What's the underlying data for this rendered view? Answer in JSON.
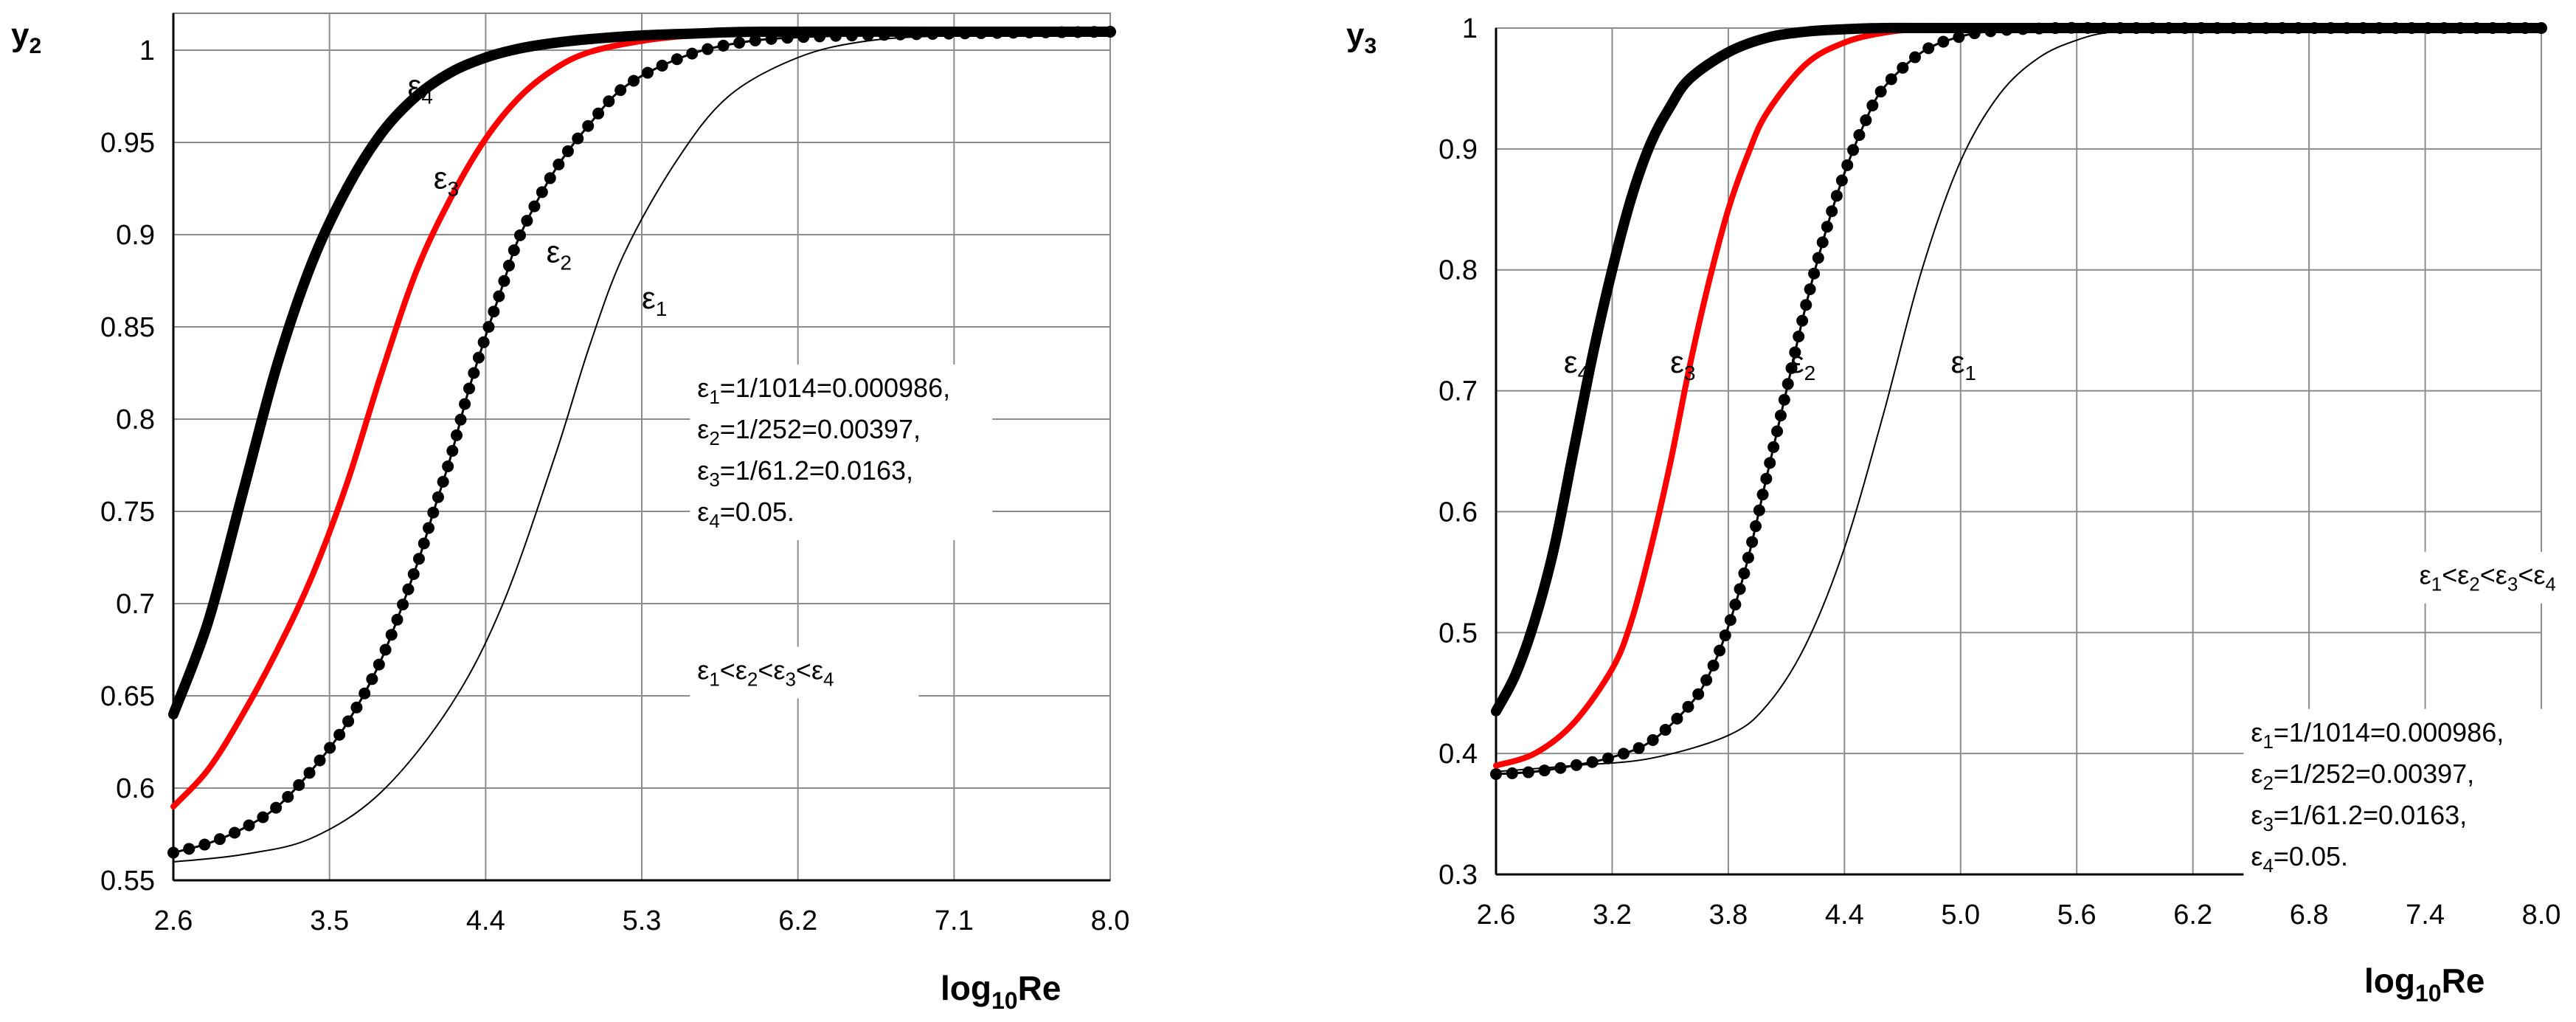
{
  "chart_data": [
    {
      "type": "line",
      "ylabel": "y",
      "ylabel_sub": "2",
      "xlabel": "log",
      "xlabel_sub": "10",
      "xlabel_tail": "Re",
      "xlim": [
        2.6,
        8.0
      ],
      "ylim": [
        0.55,
        1.02
      ],
      "xticks": [
        "2.6",
        "3.5",
        "4.4",
        "5.3",
        "6.2",
        "7.1",
        "8.0"
      ],
      "yticks": [
        "0.55",
        "0.6",
        "0.65",
        "0.7",
        "0.75",
        "0.8",
        "0.85",
        "0.9",
        "0.95",
        "1"
      ],
      "grid": true,
      "series": [
        {
          "name": "ε1",
          "style": "thin",
          "color": "#000000",
          "x": [
            2.6,
            3.0,
            3.4,
            3.8,
            4.2,
            4.5,
            4.8,
            5.0,
            5.2,
            5.5,
            5.8,
            6.2,
            6.6,
            7.1,
            8.0
          ],
          "y": [
            0.56,
            0.564,
            0.573,
            0.598,
            0.645,
            0.7,
            0.78,
            0.84,
            0.89,
            0.94,
            0.975,
            0.996,
            1.005,
            1.008,
            1.01
          ]
        },
        {
          "name": "ε2",
          "style": "dotted",
          "color": "#000000",
          "x": [
            2.6,
            2.8,
            3.0,
            3.2,
            3.4,
            3.6,
            3.8,
            4.0,
            4.1,
            4.2,
            4.3,
            4.4,
            4.5,
            4.6,
            4.8,
            5.0,
            5.2,
            5.5,
            5.8,
            6.2,
            7.1,
            8.0
          ],
          "y": [
            0.565,
            0.57,
            0.578,
            0.59,
            0.61,
            0.635,
            0.67,
            0.72,
            0.75,
            0.78,
            0.815,
            0.845,
            0.873,
            0.9,
            0.935,
            0.96,
            0.98,
            0.995,
            1.003,
            1.007,
            1.009,
            1.01
          ]
        },
        {
          "name": "ε3",
          "style": "red",
          "color": "#ff0000",
          "x": [
            2.6,
            2.8,
            3.0,
            3.2,
            3.4,
            3.6,
            3.8,
            4.0,
            4.2,
            4.4,
            4.6,
            4.8,
            5.0,
            5.3,
            5.6,
            6.0,
            7.1,
            8.0
          ],
          "y": [
            0.59,
            0.61,
            0.64,
            0.675,
            0.715,
            0.765,
            0.825,
            0.88,
            0.92,
            0.952,
            0.975,
            0.99,
            0.999,
            1.005,
            1.008,
            1.009,
            1.01,
            1.01
          ]
        },
        {
          "name": "ε4",
          "style": "thick",
          "color": "#000000",
          "x": [
            2.6,
            2.8,
            3.0,
            3.2,
            3.4,
            3.6,
            3.8,
            4.0,
            4.2,
            4.4,
            4.6,
            4.8,
            5.0,
            5.3,
            5.6,
            6.0,
            7.1,
            8.0
          ],
          "y": [
            0.64,
            0.69,
            0.76,
            0.83,
            0.885,
            0.925,
            0.955,
            0.975,
            0.988,
            0.996,
            1.001,
            1.004,
            1.006,
            1.008,
            1.009,
            1.01,
            1.01,
            1.01
          ]
        }
      ],
      "curve_labels": [
        {
          "name": "ε",
          "sub": "4",
          "x": 3.95,
          "y": 0.975
        },
        {
          "name": "ε",
          "sub": "3",
          "x": 4.1,
          "y": 0.925
        },
        {
          "name": "ε",
          "sub": "2",
          "x": 4.75,
          "y": 0.885
        },
        {
          "name": "ε",
          "sub": "1",
          "x": 5.3,
          "y": 0.86
        }
      ],
      "annotations": [
        {
          "lines": [
            {
              "prefix": "ε",
              "sub": "1",
              "text": "=1/1014=0.000986,"
            },
            {
              "prefix": "ε",
              "sub": "2",
              "text": "=1/252=0.00397,"
            },
            {
              "prefix": "ε",
              "sub": "3",
              "text": "=1/61.2=0.0163,"
            },
            {
              "prefix": "ε",
              "sub": "4",
              "text": "=0.05."
            }
          ],
          "x": 5.62,
          "y": 0.812
        },
        {
          "ineq": [
            "ε",
            "1",
            "<",
            "ε",
            "2",
            "<",
            "ε",
            "3",
            "<",
            "ε",
            "4"
          ],
          "x": 5.62,
          "y": 0.659
        }
      ]
    },
    {
      "type": "line",
      "ylabel": "y",
      "ylabel_sub": "3",
      "xlabel": "log",
      "xlabel_sub": "10",
      "xlabel_tail": "Re",
      "xlim": [
        2.6,
        8.0
      ],
      "ylim": [
        0.3,
        1.0
      ],
      "xticks": [
        "2.6",
        "3.2",
        "3.8",
        "4.4",
        "5.0",
        "5.6",
        "6.2",
        "6.8",
        "7.4",
        "8.0"
      ],
      "yticks": [
        "0.3",
        "0.4",
        "0.5",
        "0.6",
        "0.7",
        "0.8",
        "0.9",
        "1"
      ],
      "grid": true,
      "series": [
        {
          "name": "ε1",
          "style": "thin",
          "color": "#000000",
          "x": [
            2.6,
            3.0,
            3.4,
            3.8,
            4.0,
            4.2,
            4.4,
            4.6,
            4.8,
            5.0,
            5.2,
            5.4,
            5.6,
            5.8,
            6.2,
            7.0,
            8.0
          ],
          "y": [
            0.385,
            0.39,
            0.396,
            0.415,
            0.44,
            0.49,
            0.57,
            0.68,
            0.8,
            0.89,
            0.945,
            0.975,
            0.99,
            0.997,
            1.0,
            1.0,
            1.0
          ]
        },
        {
          "name": "ε2",
          "style": "dotted",
          "color": "#000000",
          "x": [
            2.6,
            2.8,
            3.0,
            3.2,
            3.4,
            3.6,
            3.7,
            3.8,
            3.9,
            4.0,
            4.1,
            4.2,
            4.3,
            4.4,
            4.5,
            4.6,
            4.8,
            5.0,
            5.2,
            5.5,
            5.8,
            6.2,
            7.0,
            8.0
          ],
          "y": [
            0.383,
            0.385,
            0.39,
            0.397,
            0.41,
            0.44,
            0.465,
            0.505,
            0.56,
            0.63,
            0.7,
            0.77,
            0.83,
            0.88,
            0.92,
            0.95,
            0.98,
            0.993,
            0.998,
            1.0,
            1.0,
            1.0,
            1.0,
            1.0
          ]
        },
        {
          "name": "ε3",
          "style": "red",
          "color": "#ff0000",
          "x": [
            2.6,
            2.8,
            3.0,
            3.2,
            3.3,
            3.4,
            3.5,
            3.6,
            3.7,
            3.8,
            3.9,
            4.0,
            4.2,
            4.4,
            4.6,
            4.8,
            5.2,
            6.0,
            8.0
          ],
          "y": [
            0.39,
            0.4,
            0.425,
            0.47,
            0.51,
            0.57,
            0.64,
            0.72,
            0.79,
            0.85,
            0.895,
            0.93,
            0.97,
            0.988,
            0.996,
            0.999,
            1.0,
            1.0,
            1.0
          ]
        },
        {
          "name": "ε4",
          "style": "thick",
          "color": "#000000",
          "x": [
            2.6,
            2.7,
            2.8,
            2.9,
            3.0,
            3.1,
            3.2,
            3.3,
            3.4,
            3.5,
            3.6,
            3.8,
            4.0,
            4.2,
            4.4,
            4.6,
            5.0,
            6.0,
            8.0
          ],
          "y": [
            0.435,
            0.465,
            0.51,
            0.57,
            0.65,
            0.73,
            0.8,
            0.86,
            0.905,
            0.935,
            0.958,
            0.98,
            0.992,
            0.997,
            0.999,
            1.0,
            1.0,
            1.0,
            1.0
          ]
        }
      ],
      "curve_labels": [
        {
          "name": "ε",
          "sub": "4",
          "x": 2.95,
          "y": 0.715
        },
        {
          "name": "ε",
          "sub": "3",
          "x": 3.5,
          "y": 0.715
        },
        {
          "name": "ε",
          "sub": "2",
          "x": 4.12,
          "y": 0.715
        },
        {
          "name": "ε",
          "sub": "1",
          "x": 4.95,
          "y": 0.715
        }
      ],
      "annotations": [
        {
          "ineq": [
            "ε",
            "1",
            "<",
            "ε",
            "2",
            "<",
            "ε",
            "3",
            "<",
            "ε",
            "4"
          ],
          "x": 7.37,
          "y": 0.54
        },
        {
          "lines": [
            {
              "prefix": "ε",
              "sub": "1",
              "text": "=1/1014=0.000986,"
            },
            {
              "prefix": "ε",
              "sub": "2",
              "text": "=1/252=0.00397,"
            },
            {
              "prefix": "ε",
              "sub": "3",
              "text": "=1/61.2=0.0163,"
            },
            {
              "prefix": "ε",
              "sub": "4",
              "text": "=0.05."
            }
          ],
          "x": 6.5,
          "y": 0.41
        }
      ]
    }
  ]
}
